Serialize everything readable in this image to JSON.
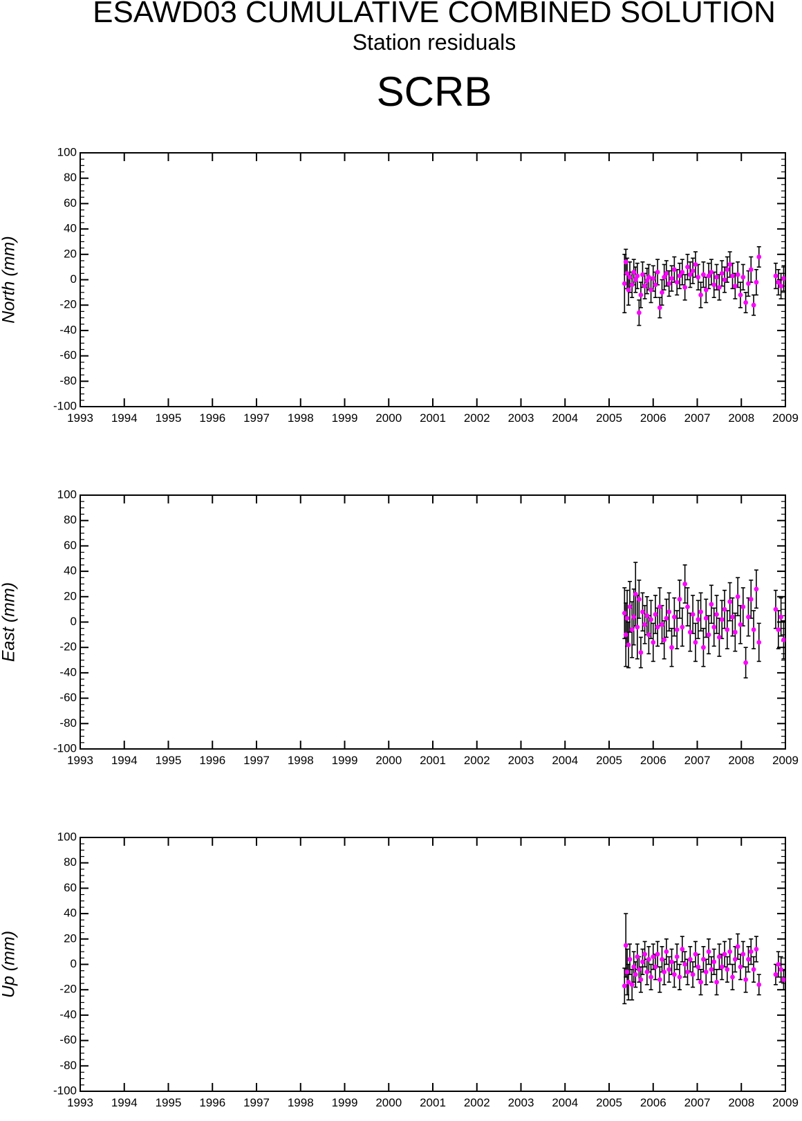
{
  "title": "ESAWD03 CUMULATIVE COMBINED SOLUTION",
  "subtitle": "Station residuals",
  "station": "SCRB",
  "colors": {
    "point": "#ff00ff",
    "errorbar": "#000000",
    "axis": "#000000"
  },
  "chart_data": [
    {
      "type": "scatter",
      "ylabel": "North (mm)",
      "xlim": [
        1993,
        2009
      ],
      "ylim": [
        -100,
        100
      ],
      "xticks": [
        "1993",
        "1994",
        "1995",
        "1996",
        "1997",
        "1998",
        "1999",
        "2000",
        "2001",
        "2002",
        "2003",
        "2004",
        "2005",
        "2006",
        "2007",
        "2008",
        "2009"
      ],
      "yticks": [
        "100",
        "80",
        "60",
        "40",
        "20",
        "0",
        "-20",
        "-40",
        "-60",
        "-80",
        "-100"
      ],
      "grid": false,
      "error_bars": true,
      "x": [
        2005.35,
        2005.38,
        2005.41,
        2005.44,
        2005.47,
        2005.52,
        2005.56,
        2005.6,
        2005.64,
        2005.68,
        2005.72,
        2005.76,
        2005.81,
        2005.86,
        2005.9,
        2005.95,
        2006.0,
        2006.05,
        2006.1,
        2006.15,
        2006.2,
        2006.25,
        2006.3,
        2006.36,
        2006.42,
        2006.48,
        2006.54,
        2006.6,
        2006.66,
        2006.72,
        2006.78,
        2006.84,
        2006.9,
        2006.96,
        2007.02,
        2007.08,
        2007.14,
        2007.2,
        2007.26,
        2007.32,
        2007.38,
        2007.44,
        2007.5,
        2007.56,
        2007.62,
        2007.68,
        2007.74,
        2007.8,
        2007.86,
        2007.92,
        2007.98,
        2008.04,
        2008.1,
        2008.16,
        2008.22,
        2008.28,
        2008.34,
        2008.4,
        2008.78,
        2008.84,
        2008.9,
        2008.96
      ],
      "y": [
        -3,
        14,
        5,
        -8,
        2,
        -4,
        6,
        0,
        3,
        -26,
        -12,
        4,
        -5,
        -1,
        2,
        -8,
        1,
        -4,
        6,
        -22,
        -10,
        2,
        5,
        -3,
        1,
        8,
        -2,
        3,
        6,
        -6,
        10,
        4,
        7,
        12,
        2,
        -12,
        4,
        -8,
        3,
        6,
        -4,
        2,
        -6,
        5,
        0,
        8,
        12,
        3,
        -5,
        4,
        -12,
        2,
        -18,
        -3,
        8,
        -20,
        -2,
        18,
        3,
        -2,
        -5,
        1
      ],
      "err": [
        23,
        10,
        12,
        12,
        12,
        10,
        10,
        10,
        10,
        10,
        10,
        10,
        10,
        10,
        10,
        10,
        10,
        10,
        10,
        8,
        10,
        10,
        10,
        10,
        10,
        10,
        10,
        10,
        10,
        10,
        10,
        10,
        10,
        10,
        10,
        10,
        10,
        10,
        10,
        10,
        10,
        10,
        10,
        10,
        10,
        10,
        10,
        10,
        10,
        10,
        10,
        10,
        8,
        10,
        10,
        8,
        10,
        8,
        10,
        10,
        10,
        10
      ]
    },
    {
      "type": "scatter",
      "ylabel": "East (mm)",
      "xlim": [
        1993,
        2009
      ],
      "ylim": [
        -100,
        100
      ],
      "xticks": [
        "1993",
        "1994",
        "1995",
        "1996",
        "1997",
        "1998",
        "1999",
        "2000",
        "2001",
        "2002",
        "2003",
        "2004",
        "2005",
        "2006",
        "2007",
        "2008",
        "2009"
      ],
      "yticks": [
        "100",
        "80",
        "60",
        "40",
        "20",
        "0",
        "-20",
        "-40",
        "-60",
        "-80",
        "-100"
      ],
      "grid": false,
      "error_bars": true,
      "x": [
        2005.35,
        2005.38,
        2005.41,
        2005.44,
        2005.47,
        2005.52,
        2005.56,
        2005.6,
        2005.64,
        2005.68,
        2005.72,
        2005.76,
        2005.81,
        2005.86,
        2005.9,
        2005.95,
        2006.0,
        2006.05,
        2006.1,
        2006.15,
        2006.2,
        2006.25,
        2006.3,
        2006.36,
        2006.42,
        2006.48,
        2006.54,
        2006.6,
        2006.66,
        2006.72,
        2006.78,
        2006.84,
        2006.9,
        2006.96,
        2007.02,
        2007.08,
        2007.14,
        2007.2,
        2007.26,
        2007.32,
        2007.38,
        2007.44,
        2007.5,
        2007.56,
        2007.62,
        2007.68,
        2007.74,
        2007.8,
        2007.86,
        2007.92,
        2007.98,
        2008.04,
        2008.1,
        2008.16,
        2008.22,
        2008.28,
        2008.34,
        2008.4,
        2008.78,
        2008.84,
        2008.9,
        2008.96
      ],
      "y": [
        7,
        -10,
        3,
        -18,
        12,
        -6,
        4,
        22,
        -4,
        18,
        -24,
        8,
        -2,
        5,
        -10,
        2,
        -16,
        6,
        -4,
        12,
        -2,
        -14,
        3,
        8,
        -20,
        4,
        -6,
        18,
        -4,
        30,
        12,
        -8,
        6,
        -16,
        2,
        8,
        -20,
        3,
        -10,
        14,
        -4,
        6,
        -12,
        2,
        10,
        -6,
        16,
        4,
        -8,
        20,
        -2,
        12,
        -32,
        4,
        18,
        -6,
        26,
        -16,
        10,
        -6,
        4,
        -14
      ],
      "err": [
        20,
        25,
        22,
        18,
        20,
        22,
        22,
        25,
        25,
        15,
        12,
        15,
        15,
        15,
        15,
        15,
        15,
        15,
        15,
        15,
        15,
        15,
        15,
        15,
        15,
        15,
        15,
        15,
        15,
        15,
        15,
        15,
        15,
        15,
        15,
        15,
        15,
        15,
        15,
        15,
        15,
        15,
        15,
        15,
        15,
        15,
        15,
        15,
        15,
        15,
        15,
        15,
        12,
        15,
        15,
        15,
        15,
        15,
        15,
        15,
        15,
        15
      ]
    },
    {
      "type": "scatter",
      "ylabel": "Up (mm)",
      "xlim": [
        1993,
        2009
      ],
      "ylim": [
        -100,
        100
      ],
      "xticks": [
        "1993",
        "1994",
        "1995",
        "1996",
        "1997",
        "1998",
        "1999",
        "2000",
        "2001",
        "2002",
        "2003",
        "2004",
        "2005",
        "2006",
        "2007",
        "2008",
        "2009"
      ],
      "yticks": [
        "100",
        "80",
        "60",
        "40",
        "20",
        "0",
        "-20",
        "-40",
        "-60",
        "-80",
        "-100"
      ],
      "grid": false,
      "error_bars": true,
      "x": [
        2005.35,
        2005.38,
        2005.41,
        2005.44,
        2005.47,
        2005.52,
        2005.56,
        2005.6,
        2005.64,
        2005.68,
        2005.72,
        2005.76,
        2005.81,
        2005.86,
        2005.9,
        2005.95,
        2006.0,
        2006.05,
        2006.1,
        2006.15,
        2006.2,
        2006.25,
        2006.3,
        2006.36,
        2006.42,
        2006.48,
        2006.54,
        2006.6,
        2006.66,
        2006.72,
        2006.78,
        2006.84,
        2006.9,
        2006.96,
        2007.02,
        2007.08,
        2007.14,
        2007.2,
        2007.26,
        2007.32,
        2007.38,
        2007.44,
        2007.5,
        2007.56,
        2007.62,
        2007.68,
        2007.74,
        2007.8,
        2007.86,
        2007.92,
        2007.98,
        2008.04,
        2008.1,
        2008.16,
        2008.22,
        2008.28,
        2008.34,
        2008.4,
        2008.78,
        2008.84,
        2008.9,
        2008.96
      ],
      "y": [
        -17,
        15,
        -6,
        -14,
        4,
        -16,
        -2,
        -8,
        6,
        -4,
        -12,
        2,
        8,
        -6,
        4,
        -10,
        6,
        -2,
        8,
        -12,
        4,
        -6,
        10,
        -4,
        2,
        -8,
        6,
        -10,
        12,
        0,
        -6,
        4,
        -8,
        8,
        -2,
        -14,
        4,
        -6,
        10,
        -4,
        2,
        -14,
        6,
        -2,
        8,
        -4,
        10,
        -10,
        4,
        14,
        -2,
        8,
        -12,
        4,
        10,
        -4,
        12,
        -16,
        -8,
        0,
        -4,
        -12
      ],
      "err": [
        14,
        25,
        18,
        14,
        12,
        12,
        12,
        10,
        10,
        10,
        10,
        10,
        10,
        10,
        10,
        10,
        10,
        10,
        10,
        10,
        10,
        10,
        10,
        10,
        10,
        10,
        10,
        10,
        10,
        10,
        10,
        10,
        10,
        10,
        10,
        10,
        10,
        10,
        10,
        10,
        10,
        10,
        10,
        10,
        10,
        10,
        10,
        10,
        10,
        10,
        10,
        10,
        10,
        10,
        10,
        10,
        10,
        8,
        8,
        10,
        10,
        8
      ]
    }
  ]
}
